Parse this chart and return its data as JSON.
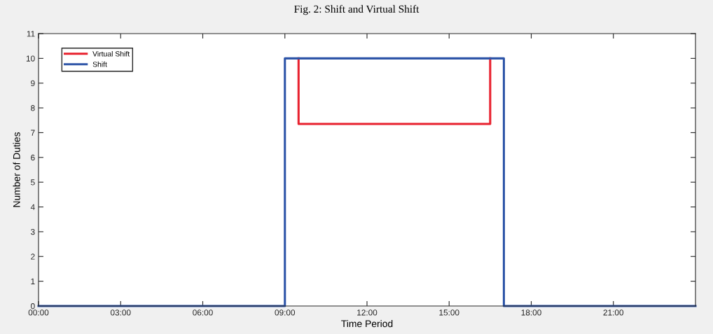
{
  "chart_data": {
    "type": "line",
    "title": "Fig. 2: Shift and Virtual Shift",
    "xlabel": "Time Period",
    "ylabel": "Number of Duties",
    "series": [
      {
        "name": "Virtual Shift",
        "color": "#e8212e",
        "x": [
          9.5,
          9.5,
          16.5,
          16.5
        ],
        "values": [
          10,
          7.35,
          7.35,
          10
        ]
      },
      {
        "name": "Shift",
        "color": "#2e55a8",
        "x": [
          0,
          9,
          9,
          17,
          17,
          24
        ],
        "values": [
          0,
          0,
          10,
          10,
          0,
          0
        ]
      }
    ],
    "xlim": [
      0,
      24
    ],
    "xticks": [
      {
        "value": 0,
        "label": "00:00"
      },
      {
        "value": 3,
        "label": "03:00"
      },
      {
        "value": 6,
        "label": "06:00"
      },
      {
        "value": 9,
        "label": "09:00"
      },
      {
        "value": 12,
        "label": "12:00"
      },
      {
        "value": 15,
        "label": "15:00"
      },
      {
        "value": 18,
        "label": "18:00"
      },
      {
        "value": 21,
        "label": "21:00"
      }
    ],
    "ylim": [
      0,
      11
    ],
    "yticks": [
      0,
      1,
      2,
      3,
      4,
      5,
      6,
      7,
      8,
      9,
      10,
      11
    ],
    "grid": false,
    "legend": "top left",
    "marker": "none",
    "line_style": "solid"
  }
}
